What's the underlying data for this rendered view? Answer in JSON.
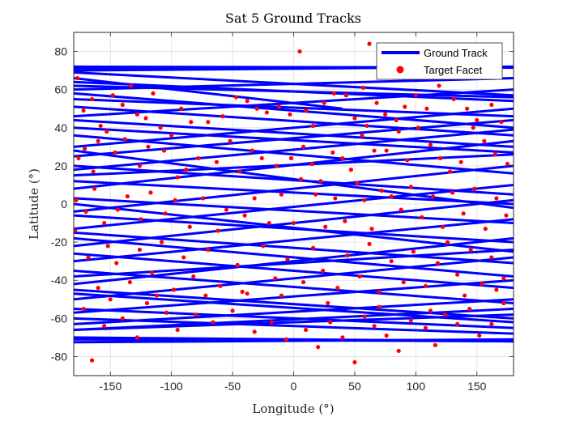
{
  "chart_data": {
    "type": "scatter",
    "title": "Sat 5 Ground Tracks",
    "xlabel": "Longitude (°)",
    "ylabel": "Latitude (°)",
    "xlim": [
      -180,
      180
    ],
    "ylim": [
      -90,
      90
    ],
    "xticks": [
      -150,
      -100,
      -50,
      0,
      50,
      100,
      150
    ],
    "yticks": [
      -80,
      -60,
      -40,
      -20,
      0,
      20,
      40,
      60,
      80
    ],
    "grid": true,
    "legend_position": "top-right",
    "colors": {
      "track": "#0000ff",
      "facet": "#ff0000"
    },
    "track_inclination_deg": 72,
    "series": [
      {
        "name": "Ground Track",
        "kind": "line",
        "segments": [
          [
            [
              -180,
              71
            ],
            [
              180,
              72
            ]
          ],
          [
            [
              -180,
              72
            ],
            [
              180,
              71.5
            ]
          ],
          [
            [
              -180,
              70
            ],
            [
              180,
              72
            ]
          ],
          [
            [
              -180,
              -71
            ],
            [
              180,
              -72
            ]
          ],
          [
            [
              -180,
              -72.5
            ],
            [
              180,
              -71
            ]
          ],
          [
            [
              -180,
              -70
            ],
            [
              180,
              -72
            ]
          ],
          [
            [
              -180,
              60
            ],
            [
              180,
              66
            ]
          ],
          [
            [
              -180,
              64
            ],
            [
              180,
              54
            ]
          ],
          [
            [
              -180,
              58
            ],
            [
              180,
              40
            ]
          ],
          [
            [
              -180,
              69
            ],
            [
              180,
              57
            ]
          ],
          [
            [
              -180,
              66
            ],
            [
              40,
              50
            ]
          ],
          [
            [
              -180,
              46
            ],
            [
              180,
              60
            ]
          ],
          [
            [
              -180,
              51
            ],
            [
              180,
              36
            ]
          ],
          [
            [
              -180,
              40
            ],
            [
              180,
              27
            ]
          ],
          [
            [
              -180,
              36
            ],
            [
              180,
              16
            ]
          ],
          [
            [
              -180,
              18
            ],
            [
              180,
              39
            ]
          ],
          [
            [
              -180,
              25
            ],
            [
              180,
              44
            ]
          ],
          [
            [
              -180,
              8
            ],
            [
              180,
              33
            ]
          ],
          [
            [
              -180,
              20
            ],
            [
              180,
              5
            ]
          ],
          [
            [
              -180,
              12
            ],
            [
              180,
              0
            ]
          ],
          [
            [
              -180,
              3
            ],
            [
              180,
              -10
            ]
          ],
          [
            [
              -180,
              -4
            ],
            [
              180,
              20
            ]
          ],
          [
            [
              -180,
              -13
            ],
            [
              180,
              10
            ]
          ],
          [
            [
              -180,
              -6
            ],
            [
              180,
              -20
            ]
          ],
          [
            [
              -180,
              -15
            ],
            [
              180,
              -31
            ]
          ],
          [
            [
              -180,
              -22
            ],
            [
              180,
              2
            ]
          ],
          [
            [
              -180,
              -30
            ],
            [
              180,
              -8
            ]
          ],
          [
            [
              -180,
              -26
            ],
            [
              180,
              -44
            ]
          ],
          [
            [
              -180,
              -35
            ],
            [
              180,
              -52
            ]
          ],
          [
            [
              -180,
              -42
            ],
            [
              180,
              -18
            ]
          ],
          [
            [
              -180,
              -50
            ],
            [
              180,
              -28
            ]
          ],
          [
            [
              -180,
              -47
            ],
            [
              180,
              -62
            ]
          ],
          [
            [
              -180,
              -57
            ],
            [
              180,
              -40
            ]
          ],
          [
            [
              -180,
              -63
            ],
            [
              180,
              -50
            ]
          ],
          [
            [
              -180,
              -66
            ],
            [
              180,
              -58
            ]
          ],
          [
            [
              -180,
              -60
            ],
            [
              180,
              -68
            ]
          ],
          [
            [
              -180,
              -55
            ],
            [
              180,
              -65
            ]
          ],
          [
            [
              -180,
              30
            ],
            [
              180,
              50
            ]
          ],
          [
            [
              -180,
              44
            ],
            [
              180,
              30
            ]
          ],
          [
            [
              -180,
              -38
            ],
            [
              180,
              -24
            ]
          ],
          [
            [
              -180,
              55
            ],
            [
              180,
              46
            ]
          ],
          [
            [
              -180,
              -18
            ],
            [
              180,
              -38
            ]
          ],
          [
            [
              -180,
              0
            ],
            [
              180,
              -25
            ]
          ],
          [
            [
              -180,
              15
            ],
            [
              180,
              26
            ]
          ],
          [
            [
              -180,
              -45
            ],
            [
              180,
              -60
            ]
          ],
          [
            [
              -180,
              62
            ],
            [
              180,
              56
            ]
          ],
          [
            [
              -180,
              28
            ],
            [
              180,
              -2
            ]
          ],
          [
            [
              -180,
              -66
            ],
            [
              180,
              -55
            ]
          ]
        ]
      },
      {
        "name": "Target Facet",
        "kind": "points",
        "points": [
          [
            -177,
            66
          ],
          [
            -172,
            49
          ],
          [
            -165,
            55
          ],
          [
            -160,
            33
          ],
          [
            -153,
            38
          ],
          [
            -148,
            57
          ],
          [
            -140,
            52
          ],
          [
            -133,
            62
          ],
          [
            -128,
            47
          ],
          [
            -121,
            45
          ],
          [
            -115,
            58
          ],
          [
            -109,
            40
          ],
          [
            -100,
            36
          ],
          [
            -92,
            50
          ],
          [
            -84,
            43
          ],
          [
            -70,
            43
          ],
          [
            -58,
            46
          ],
          [
            -47,
            56
          ],
          [
            -38,
            54
          ],
          [
            -30,
            50
          ],
          [
            -22,
            48
          ],
          [
            -12,
            51
          ],
          [
            -3,
            47
          ],
          [
            5,
            80
          ],
          [
            10,
            49
          ],
          [
            16,
            41
          ],
          [
            25,
            53
          ],
          [
            33,
            58
          ],
          [
            43,
            57
          ],
          [
            50,
            45
          ],
          [
            57,
            61
          ],
          [
            62,
            84
          ],
          [
            68,
            53
          ],
          [
            75,
            47
          ],
          [
            84,
            44
          ],
          [
            91,
            51
          ],
          [
            100,
            57
          ],
          [
            109,
            50
          ],
          [
            119,
            62
          ],
          [
            131,
            55
          ],
          [
            142,
            50
          ],
          [
            150,
            44
          ],
          [
            162,
            52
          ],
          [
            170,
            43
          ],
          [
            -176,
            24
          ],
          [
            -171,
            29
          ],
          [
            -164,
            17
          ],
          [
            -158,
            41
          ],
          [
            -146,
            27
          ],
          [
            -138,
            34
          ],
          [
            -126,
            20
          ],
          [
            -119,
            30
          ],
          [
            -106,
            28
          ],
          [
            -95,
            14
          ],
          [
            -88,
            18
          ],
          [
            -78,
            24
          ],
          [
            -63,
            22
          ],
          [
            -52,
            33
          ],
          [
            -44,
            17
          ],
          [
            -34,
            28
          ],
          [
            -26,
            24
          ],
          [
            -14,
            20
          ],
          [
            -2,
            24
          ],
          [
            8,
            30
          ],
          [
            15,
            21
          ],
          [
            22,
            12
          ],
          [
            32,
            27
          ],
          [
            40,
            24
          ],
          [
            47,
            18
          ],
          [
            56,
            36
          ],
          [
            60,
            41
          ],
          [
            66,
            28
          ],
          [
            76,
            28
          ],
          [
            86,
            38
          ],
          [
            93,
            23
          ],
          [
            102,
            40
          ],
          [
            112,
            31
          ],
          [
            120,
            24
          ],
          [
            128,
            17
          ],
          [
            137,
            22
          ],
          [
            147,
            40
          ],
          [
            156,
            33
          ],
          [
            165,
            26
          ],
          [
            175,
            21
          ],
          [
            -178,
            2
          ],
          [
            -170,
            -4
          ],
          [
            -163,
            8
          ],
          [
            -155,
            -10
          ],
          [
            -144,
            -3
          ],
          [
            -136,
            4
          ],
          [
            -125,
            -8
          ],
          [
            -117,
            6
          ],
          [
            -105,
            -5
          ],
          [
            -97,
            2
          ],
          [
            -85,
            -12
          ],
          [
            -74,
            3
          ],
          [
            -62,
            -14
          ],
          [
            -55,
            -3
          ],
          [
            -40,
            -6
          ],
          [
            -32,
            3
          ],
          [
            -20,
            -10
          ],
          [
            -10,
            5
          ],
          [
            0,
            -10
          ],
          [
            6,
            13
          ],
          [
            18,
            5
          ],
          [
            26,
            -12
          ],
          [
            34,
            3
          ],
          [
            42,
            -9
          ],
          [
            52,
            11
          ],
          [
            58,
            2
          ],
          [
            64,
            -13
          ],
          [
            72,
            7
          ],
          [
            80,
            4
          ],
          [
            88,
            -3
          ],
          [
            96,
            9
          ],
          [
            105,
            -7
          ],
          [
            114,
            4
          ],
          [
            122,
            -12
          ],
          [
            130,
            6
          ],
          [
            139,
            -5
          ],
          [
            148,
            8
          ],
          [
            157,
            -13
          ],
          [
            166,
            3
          ],
          [
            174,
            -6
          ],
          [
            -179,
            -14
          ],
          [
            -168,
            -28
          ],
          [
            -160,
            -44
          ],
          [
            -152,
            -22
          ],
          [
            -145,
            -31
          ],
          [
            -134,
            -41
          ],
          [
            -126,
            -24
          ],
          [
            -116,
            -36
          ],
          [
            -108,
            -20
          ],
          [
            -98,
            -45
          ],
          [
            -90,
            -28
          ],
          [
            -82,
            -38
          ],
          [
            -70,
            -24
          ],
          [
            -60,
            -43
          ],
          [
            -46,
            -32
          ],
          [
            -38,
            -47
          ],
          [
            -25,
            -22
          ],
          [
            -15,
            -39
          ],
          [
            -5,
            -29
          ],
          [
            8,
            -41
          ],
          [
            16,
            -23
          ],
          [
            24,
            -35
          ],
          [
            36,
            -44
          ],
          [
            44,
            -27
          ],
          [
            54,
            -38
          ],
          [
            62,
            -21
          ],
          [
            70,
            -46
          ],
          [
            80,
            -30
          ],
          [
            90,
            -41
          ],
          [
            98,
            -25
          ],
          [
            108,
            -43
          ],
          [
            118,
            -31
          ],
          [
            126,
            -20
          ],
          [
            134,
            -37
          ],
          [
            145,
            -24
          ],
          [
            154,
            -42
          ],
          [
            162,
            -28
          ],
          [
            172,
            -39
          ],
          [
            -172,
            -55
          ],
          [
            -165,
            -82
          ],
          [
            -155,
            -64
          ],
          [
            -140,
            -60
          ],
          [
            -128,
            -70
          ],
          [
            -120,
            -52
          ],
          [
            -104,
            -57
          ],
          [
            -95,
            -66
          ],
          [
            -80,
            -58
          ],
          [
            -66,
            -62
          ],
          [
            -50,
            -56
          ],
          [
            -32,
            -67
          ],
          [
            -18,
            -62
          ],
          [
            -6,
            -71
          ],
          [
            10,
            -66
          ],
          [
            20,
            -75
          ],
          [
            30,
            -62
          ],
          [
            40,
            -70
          ],
          [
            50,
            -83
          ],
          [
            58,
            -59
          ],
          [
            66,
            -64
          ],
          [
            76,
            -69
          ],
          [
            86,
            -77
          ],
          [
            96,
            -61
          ],
          [
            108,
            -65
          ],
          [
            116,
            -74
          ],
          [
            124,
            -58
          ],
          [
            134,
            -63
          ],
          [
            144,
            -55
          ],
          [
            152,
            -69
          ],
          [
            162,
            -63
          ],
          [
            172,
            -52
          ],
          [
            -150,
            -50
          ],
          [
            -112,
            -48
          ],
          [
            -72,
            -48
          ],
          [
            -42,
            -46
          ],
          [
            -10,
            -48
          ],
          [
            28,
            -52
          ],
          [
            70,
            -54
          ],
          [
            112,
            -56
          ],
          [
            140,
            -48
          ],
          [
            166,
            -45
          ]
        ]
      }
    ]
  }
}
